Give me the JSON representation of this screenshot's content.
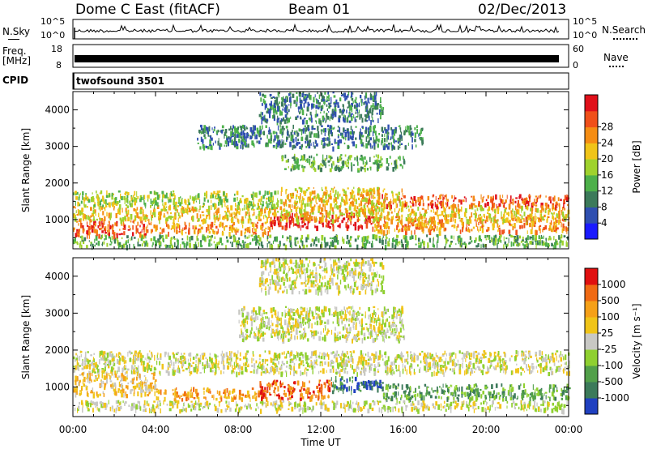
{
  "header": {
    "title": "Dome C East (fitACF)",
    "beam": "Beam 01",
    "date": "02/Dec/2013"
  },
  "noise_panel": {
    "left_label": "N.Sky",
    "left_ticks": [
      "10^5",
      "10^0"
    ],
    "right_label": "N.Search",
    "right_ticks": [
      "10^5",
      "10^0"
    ]
  },
  "freq_panel": {
    "left_label_1": "Freq.",
    "left_label_2": "[MHz]",
    "left_ticks": [
      "18",
      "8"
    ],
    "right_label": "Nave",
    "right_ticks": [
      "60",
      "0"
    ]
  },
  "cpid_panel": {
    "label": "CPID",
    "value": "twofsound 3501"
  },
  "x_axis": {
    "label": "Time UT",
    "ticks": [
      "00:00",
      "04:00",
      "08:00",
      "12:00",
      "16:00",
      "20:00",
      "00:00"
    ]
  },
  "chart_data": [
    {
      "type": "heatmap",
      "quantity": "Power",
      "ylabel": "Slant Range [km]",
      "ylim": [
        200,
        4500
      ],
      "yticks": [
        1000,
        2000,
        3000,
        4000
      ],
      "xlim": [
        0,
        24
      ],
      "colorbar": {
        "label": "Power [dB]",
        "ticks": [
          "4",
          "8",
          "12",
          "16",
          "20",
          "24",
          "28"
        ],
        "colors": [
          "#1a1aff",
          "#2f4fb0",
          "#3c7a5a",
          "#4db04a",
          "#9fd22d",
          "#f0c418",
          "#f58d14",
          "#f0501a",
          "#e0101a"
        ]
      },
      "regions": [
        {
          "x0": 0.0,
          "x1": 24.0,
          "y0": 300,
          "y1": 600,
          "level": 3
        },
        {
          "x0": 0.0,
          "x1": 3.5,
          "y0": 600,
          "y1": 1000,
          "level": 7
        },
        {
          "x0": 3.5,
          "x1": 9.5,
          "y0": 650,
          "y1": 950,
          "level": 6
        },
        {
          "x0": 9.5,
          "x1": 14.5,
          "y0": 800,
          "y1": 1200,
          "level": 8
        },
        {
          "x0": 14.5,
          "x1": 24.0,
          "y0": 700,
          "y1": 1100,
          "level": 6
        },
        {
          "x0": 0.0,
          "x1": 24.0,
          "y0": 1000,
          "y1": 1400,
          "level": 5
        },
        {
          "x0": 0.0,
          "x1": 10.0,
          "y0": 1400,
          "y1": 1800,
          "level": 4
        },
        {
          "x0": 14.0,
          "x1": 24.0,
          "y0": 1400,
          "y1": 1700,
          "level": 7
        },
        {
          "x0": 10.0,
          "x1": 16.0,
          "y0": 1400,
          "y1": 1900,
          "level": 5
        },
        {
          "x0": 10.0,
          "x1": 16.0,
          "y0": 2400,
          "y1": 2800,
          "level": 3
        },
        {
          "x0": 6.0,
          "x1": 17.0,
          "y0": 3000,
          "y1": 3600,
          "level": 2
        },
        {
          "x0": 9.0,
          "x1": 15.0,
          "y0": 3700,
          "y1": 4500,
          "level": 2
        }
      ]
    },
    {
      "type": "heatmap",
      "quantity": "Velocity",
      "ylabel": "Slant Range [km]",
      "ylim": [
        200,
        4500
      ],
      "yticks": [
        1000,
        2000,
        3000,
        4000
      ],
      "xlim": [
        0,
        24
      ],
      "colorbar": {
        "label": "Velocity [m s⁻¹]",
        "ticks": [
          "1000",
          "500",
          "100",
          "25",
          "-25",
          "-100",
          "-500",
          "-1000"
        ],
        "colors": [
          "#2040c0",
          "#3c7a5a",
          "#52a04a",
          "#8fd030",
          "#c8c8c4",
          "#f0c418",
          "#f5a018",
          "#f06a14",
          "#e01010"
        ]
      },
      "regions": [
        {
          "x0": 0.0,
          "x1": 24.0,
          "y0": 1400,
          "y1": 2000,
          "level": 4
        },
        {
          "x0": 8.0,
          "x1": 16.0,
          "y0": 2300,
          "y1": 3200,
          "level": 4
        },
        {
          "x0": 0.0,
          "x1": 4.0,
          "y0": 800,
          "y1": 1400,
          "level": 5
        },
        {
          "x0": 4.0,
          "x1": 9.0,
          "y0": 700,
          "y1": 1000,
          "level": 6
        },
        {
          "x0": 9.0,
          "x1": 12.5,
          "y0": 700,
          "y1": 1200,
          "level": 7
        },
        {
          "x0": 12.5,
          "x1": 14.0,
          "y0": 900,
          "y1": 1300,
          "level": 1
        },
        {
          "x0": 14.0,
          "x1": 15.0,
          "y0": 1000,
          "y1": 1200,
          "level": 0
        },
        {
          "x0": 15.0,
          "x1": 24.0,
          "y0": 700,
          "y1": 1100,
          "level": 2
        },
        {
          "x0": 9.0,
          "x1": 15.0,
          "y0": 3600,
          "y1": 4500,
          "level": 4
        },
        {
          "x0": 0.0,
          "x1": 24.0,
          "y0": 400,
          "y1": 650,
          "level": 4
        }
      ]
    }
  ]
}
